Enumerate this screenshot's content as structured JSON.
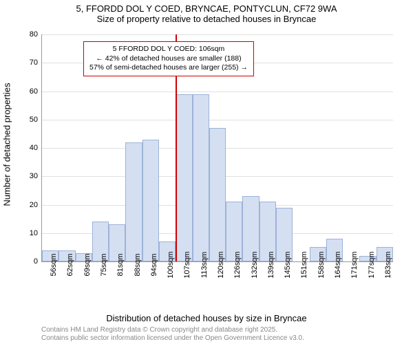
{
  "title": {
    "line1": "5, FFORDD DOL Y COED, BRYNCAE, PONTYCLUN, CF72 9WA",
    "line2": "Size of property relative to detached houses in Bryncae"
  },
  "chart": {
    "type": "histogram",
    "ylabel": "Number of detached properties",
    "xlabel": "Distribution of detached houses by size in Bryncae",
    "ylim": [
      0,
      80
    ],
    "ytick_step": 10,
    "yticks": [
      0,
      10,
      20,
      30,
      40,
      50,
      60,
      70,
      80
    ],
    "categories": [
      "56sqm",
      "62sqm",
      "69sqm",
      "75sqm",
      "81sqm",
      "88sqm",
      "94sqm",
      "100sqm",
      "107sqm",
      "113sqm",
      "120sqm",
      "126sqm",
      "132sqm",
      "139sqm",
      "145sqm",
      "151sqm",
      "158sqm",
      "164sqm",
      "171sqm",
      "177sqm",
      "183sqm"
    ],
    "values": [
      4,
      4,
      3,
      14,
      13,
      42,
      43,
      7,
      59,
      59,
      47,
      21,
      23,
      21,
      19,
      0,
      5,
      8,
      0,
      2,
      5
    ],
    "bar_fill": "#d4dff2",
    "bar_stroke": "#9db2d8",
    "background_color": "#ffffff",
    "grid_color": "#e0e0e0",
    "axis_color": "#999999",
    "marker": {
      "position_index": 8,
      "color": "#cc0000"
    },
    "info_box": {
      "border_color": "#cc0000",
      "line1": "5 FFORDD DOL Y COED: 106sqm",
      "line2": "← 42% of detached houses are smaller (188)",
      "line3": "57% of semi-detached houses are larger (255) →"
    },
    "label_fontsize": 13,
    "tick_fontsize": 11
  },
  "footer": {
    "line1": "Contains HM Land Registry data © Crown copyright and database right 2025.",
    "line2": "Contains public sector information licensed under the Open Government Licence v3.0.",
    "color": "#888888"
  }
}
